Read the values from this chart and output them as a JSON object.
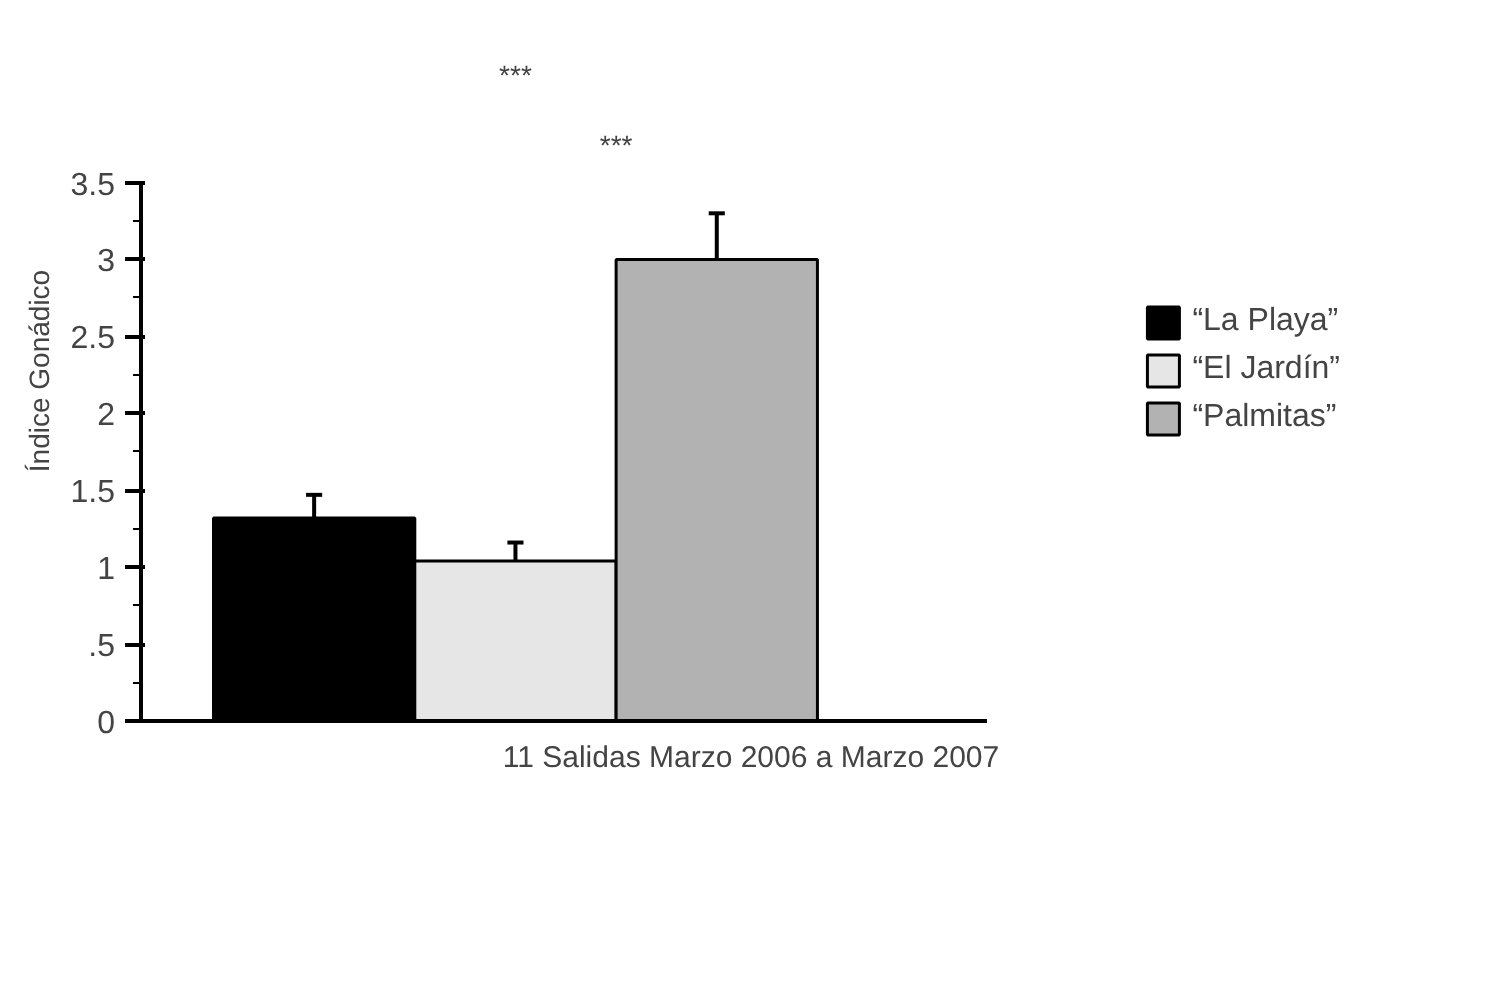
{
  "chart_data": {
    "type": "bar",
    "xlabel": "11 Salidas Marzo 2006 a Marzo 2007",
    "ylabel": "Índice Gonádico",
    "categories": [
      null
    ],
    "series": [
      {
        "name": "“La Playa”",
        "color": "#000000",
        "values": [
          1.32
        ],
        "errors": [
          [
            1.32,
            1.47
          ]
        ]
      },
      {
        "name": "“El Jardín”",
        "color": "#e6e6e6",
        "values": [
          1.04
        ],
        "errors": [
          [
            1.04,
            1.16
          ]
        ]
      },
      {
        "name": "“Palmitas”",
        "color": "#b2b2b2",
        "values": [
          3.0
        ],
        "errors": [
          [
            3.0,
            3.3
          ]
        ]
      }
    ],
    "ylim": [
      0,
      3.5
    ],
    "yticks": [
      0,
      {
        "value": 0.5,
        "label": ".5"
      },
      1,
      1.5,
      2,
      2.5,
      3,
      3.5
    ],
    "grid": false,
    "legend": "right",
    "annotations": [
      "***",
      "***"
    ]
  }
}
